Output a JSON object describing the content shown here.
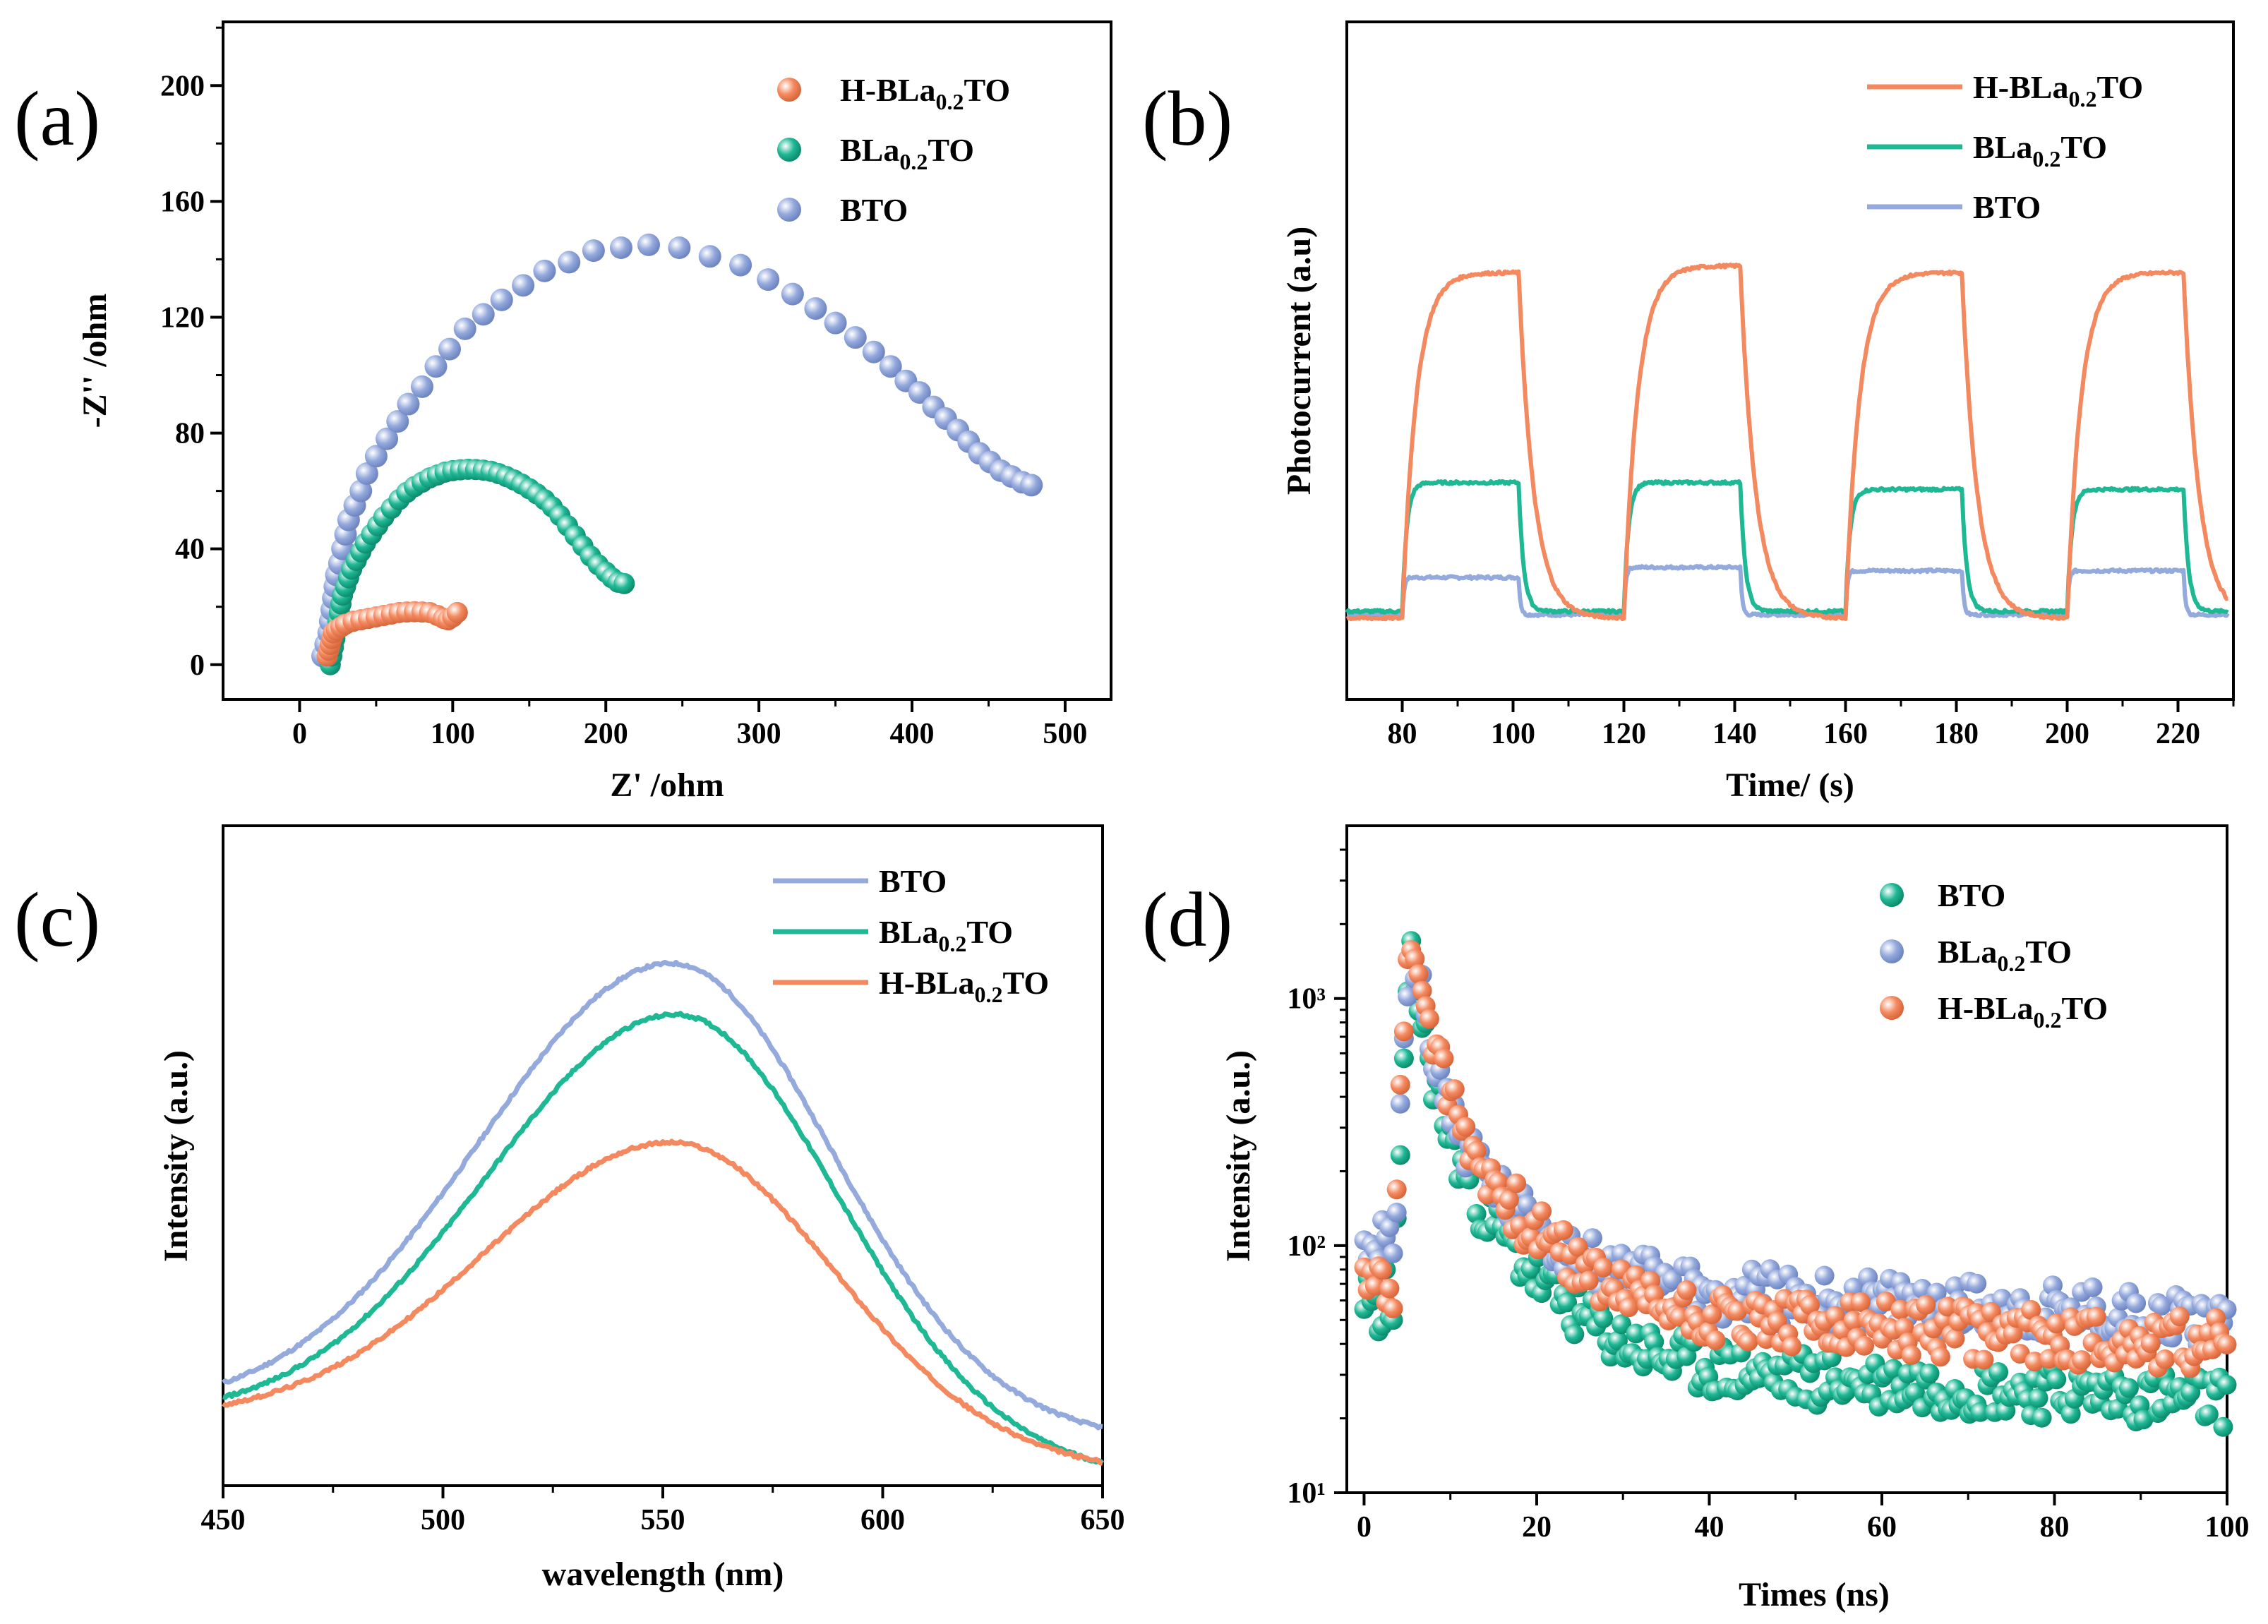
{
  "chart_data": [
    {
      "panel": "(a)",
      "type": "scatter",
      "xlabel": "Z' /ohm",
      "ylabel": "-Z'' /ohm",
      "xlim": [
        -50,
        530
      ],
      "ylim": [
        -12,
        222
      ],
      "xticks": [
        0,
        100,
        200,
        300,
        400,
        500
      ],
      "yticks": [
        0,
        40,
        80,
        120,
        160,
        200
      ],
      "legend_position": "top-right",
      "series": [
        {
          "name": "H-BLa0.2TO",
          "sub": "0.2",
          "pre": "H-BLa",
          "post": "TO",
          "color": "#f4895f",
          "points": [
            [
              18,
              3
            ],
            [
              19,
              5
            ],
            [
              20,
              7
            ],
            [
              21,
              9
            ],
            [
              22,
              11
            ],
            [
              24,
              12
            ],
            [
              27,
              13
            ],
            [
              30,
              14
            ],
            [
              35,
              15
            ],
            [
              40,
              15.5
            ],
            [
              45,
              16
            ],
            [
              50,
              16.5
            ],
            [
              55,
              17
            ],
            [
              60,
              17.5
            ],
            [
              65,
              18
            ],
            [
              70,
              18.2
            ],
            [
              75,
              18.3
            ],
            [
              80,
              18.2
            ],
            [
              85,
              18
            ],
            [
              90,
              17
            ],
            [
              94,
              16
            ],
            [
              97,
              15.5
            ],
            [
              100,
              16.5
            ],
            [
              103,
              18
            ]
          ]
        },
        {
          "name": "BLa0.2TO",
          "sub": "0.2",
          "pre": "BLa",
          "post": "TO",
          "color": "#1fb895",
          "points": [
            [
              20,
              0
            ],
            [
              21,
              3
            ],
            [
              22,
              6
            ],
            [
              23,
              9
            ],
            [
              24,
              12
            ],
            [
              25,
              15
            ],
            [
              26,
              18
            ],
            [
              27,
              21
            ],
            [
              28,
              24
            ],
            [
              30,
              27
            ],
            [
              32,
              30
            ],
            [
              34,
              33
            ],
            [
              37,
              36
            ],
            [
              40,
              39
            ],
            [
              43,
              42
            ],
            [
              47,
              45
            ],
            [
              51,
              48
            ],
            [
              55,
              51
            ],
            [
              60,
              54
            ],
            [
              65,
              57
            ],
            [
              70,
              59.5
            ],
            [
              75,
              61.5
            ],
            [
              80,
              63
            ],
            [
              85,
              64.5
            ],
            [
              90,
              65.5
            ],
            [
              95,
              66.5
            ],
            [
              100,
              67
            ],
            [
              105,
              67.3
            ],
            [
              110,
              67.5
            ],
            [
              115,
              67.4
            ],
            [
              120,
              67.2
            ],
            [
              125,
              66.8
            ],
            [
              130,
              66
            ],
            [
              135,
              65
            ],
            [
              140,
              63.8
            ],
            [
              145,
              62.4
            ],
            [
              150,
              60.8
            ],
            [
              155,
              59
            ],
            [
              160,
              57
            ],
            [
              165,
              54.5
            ],
            [
              170,
              51.5
            ],
            [
              175,
              48
            ],
            [
              180,
              44.5
            ],
            [
              185,
              41
            ],
            [
              190,
              37.5
            ],
            [
              195,
              34.5
            ],
            [
              200,
              32
            ],
            [
              204,
              30
            ],
            [
              208,
              28.5
            ],
            [
              212,
              28
            ]
          ]
        },
        {
          "name": "BTO",
          "sub": "",
          "pre": "BTO",
          "post": "",
          "color": "#94a9dc",
          "points": [
            [
              15,
              3
            ],
            [
              17,
              7
            ],
            [
              19,
              11
            ],
            [
              20,
              15
            ],
            [
              21,
              19
            ],
            [
              22,
              23
            ],
            [
              23,
              27
            ],
            [
              24,
              31
            ],
            [
              26,
              35
            ],
            [
              28,
              40
            ],
            [
              30,
              45
            ],
            [
              32,
              50
            ],
            [
              36,
              55
            ],
            [
              40,
              60
            ],
            [
              44,
              66
            ],
            [
              50,
              72
            ],
            [
              57,
              78
            ],
            [
              64,
              84
            ],
            [
              71,
              90
            ],
            [
              80,
              96
            ],
            [
              89,
              103
            ],
            [
              98,
              109
            ],
            [
              108,
              116
            ],
            [
              120,
              121
            ],
            [
              132,
              126
            ],
            [
              146,
              131
            ],
            [
              160,
              136
            ],
            [
              176,
              139
            ],
            [
              192,
              143
            ],
            [
              210,
              144
            ],
            [
              228,
              145
            ],
            [
              248,
              144
            ],
            [
              268,
              141
            ],
            [
              288,
              138
            ],
            [
              306,
              133
            ],
            [
              322,
              128
            ],
            [
              337,
              123
            ],
            [
              350,
              118
            ],
            [
              363,
              113
            ],
            [
              375,
              108
            ],
            [
              386,
              103
            ],
            [
              396,
              98
            ],
            [
              405,
              94
            ],
            [
              414,
              89
            ],
            [
              422,
              85
            ],
            [
              430,
              81
            ],
            [
              437,
              77
            ],
            [
              444,
              73
            ],
            [
              451,
              70
            ],
            [
              458,
              67
            ],
            [
              465,
              65
            ],
            [
              472,
              63
            ],
            [
              478,
              62
            ]
          ]
        }
      ]
    },
    {
      "panel": "(b)",
      "type": "line",
      "xlabel": "Time/ (s)",
      "ylabel": "Photocurrent (a.u)",
      "xlim": [
        70,
        230
      ],
      "ylim": [
        0,
        1
      ],
      "xticks": [
        80,
        100,
        120,
        140,
        160,
        180,
        200,
        220
      ],
      "light_on_off_s": [
        [
          80,
          101
        ],
        [
          120,
          141
        ],
        [
          160,
          181
        ],
        [
          200,
          221
        ]
      ],
      "legend_position": "top-right",
      "series": [
        {
          "name": "H-BLa0.2TO",
          "pre": "H-BLa",
          "sub": "0.2",
          "post": "TO",
          "color": "#f4895f",
          "dark": 0.12,
          "on_levels": [
            0.63,
            0.64,
            0.63,
            0.63
          ],
          "tau_s": 2.5
        },
        {
          "name": "BLa0.2TO",
          "pre": "BLa",
          "sub": "0.2",
          "post": "TO",
          "color": "#1fb895",
          "dark": 0.13,
          "on_levels": [
            0.32,
            0.32,
            0.31,
            0.31
          ],
          "tau_s": 0.8
        },
        {
          "name": "BTO",
          "pre": "BTO",
          "sub": "",
          "post": "",
          "color": "#94a9dc",
          "dark": 0.125,
          "on_levels": [
            0.18,
            0.195,
            0.19,
            0.19
          ],
          "tau_s": 0.3
        }
      ]
    },
    {
      "panel": "(c)",
      "type": "line",
      "xlabel": "wavelength (nm)",
      "ylabel": "Intensity (a.u.)",
      "xlim": [
        450,
        650
      ],
      "ylim": [
        0,
        1
      ],
      "xticks": [
        450,
        500,
        550,
        600,
        650
      ],
      "legend_position": "top-right",
      "series": [
        {
          "name": "BTO",
          "pre": "BTO",
          "sub": "",
          "post": "",
          "color": "#94a9dc",
          "peak_nm": 552,
          "peak": 1.0,
          "base450": 0.12,
          "base650": 0.07
        },
        {
          "name": "BLa0.2TO",
          "pre": "BLa",
          "sub": "0.2",
          "post": "TO",
          "color": "#1fb895",
          "peak_nm": 553,
          "peak": 0.9,
          "base450": 0.1,
          "base650": 0.0
        },
        {
          "name": "H-BLa0.2TO",
          "pre": "H-BLa",
          "sub": "0.2",
          "post": "TO",
          "color": "#f4895f",
          "peak_nm": 552,
          "peak": 0.65,
          "base450": 0.1,
          "base650": 0.01
        }
      ]
    },
    {
      "panel": "(d)",
      "type": "scatter",
      "scale_y": "log",
      "xlabel": "Times (ns)",
      "ylabel": "Intensity (a.u.)",
      "xlim": [
        -2,
        100
      ],
      "ylim": [
        10,
        5000
      ],
      "xticks": [
        0,
        20,
        40,
        60,
        80,
        100
      ],
      "yticks": [
        "10¹",
        "10²",
        "10³"
      ],
      "legend_position": "top-right",
      "series": [
        {
          "name": "BTO",
          "pre": "BTO",
          "sub": "",
          "post": "",
          "color": "#1fb895",
          "peak": 1400,
          "tail": 33
        },
        {
          "name": "BLa0.2TO",
          "pre": "BLa",
          "sub": "0.2",
          "post": "TO",
          "color": "#94a9dc",
          "peak": 1700,
          "tail": 70
        },
        {
          "name": "H-BLa0.2TO",
          "pre": "H-BLa",
          "sub": "0.2",
          "post": "TO",
          "color": "#f4895f",
          "peak": 2000,
          "tail": 55
        }
      ]
    }
  ]
}
